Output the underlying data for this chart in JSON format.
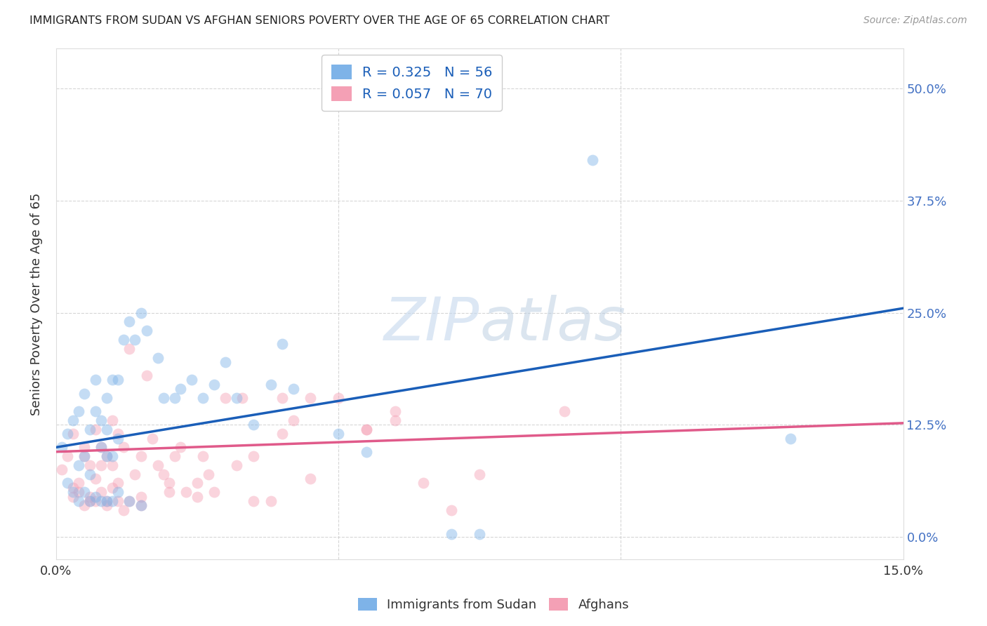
{
  "title": "IMMIGRANTS FROM SUDAN VS AFGHAN SENIORS POVERTY OVER THE AGE OF 65 CORRELATION CHART",
  "source": "Source: ZipAtlas.com",
  "ylabel": "Seniors Poverty Over the Age of 65",
  "ytick_labels": [
    "0.0%",
    "12.5%",
    "25.0%",
    "37.5%",
    "50.0%"
  ],
  "ytick_values": [
    0.0,
    0.125,
    0.25,
    0.375,
    0.5
  ],
  "xmin": 0.0,
  "xmax": 0.15,
  "ymin": -0.025,
  "ymax": 0.545,
  "sudan_color": "#7eb3e8",
  "afghan_color": "#f4a0b5",
  "sudan_line_color": "#1a5eb8",
  "afghan_line_color": "#e05a8a",
  "legend_text_color": "#1a5eb8",
  "background_color": "#ffffff",
  "grid_color": "#cccccc",
  "title_color": "#222222",
  "axis_right_label_color": "#4472c4",
  "figsize": [
    14.06,
    8.92
  ],
  "dpi": 100,
  "marker_size": 130,
  "marker_alpha": 0.45,
  "line_width": 2.5,
  "sudan_x": [
    0.001,
    0.002,
    0.003,
    0.004,
    0.004,
    0.005,
    0.005,
    0.006,
    0.006,
    0.007,
    0.007,
    0.008,
    0.008,
    0.009,
    0.009,
    0.009,
    0.01,
    0.01,
    0.011,
    0.011,
    0.012,
    0.013,
    0.014,
    0.015,
    0.016,
    0.018,
    0.019,
    0.021,
    0.022,
    0.024,
    0.026,
    0.028,
    0.03,
    0.032,
    0.035,
    0.038,
    0.04,
    0.042,
    0.05,
    0.055,
    0.002,
    0.003,
    0.004,
    0.005,
    0.006,
    0.007,
    0.008,
    0.009,
    0.01,
    0.011,
    0.013,
    0.015,
    0.07,
    0.075,
    0.095,
    0.13
  ],
  "sudan_y": [
    0.1,
    0.115,
    0.13,
    0.08,
    0.14,
    0.09,
    0.16,
    0.12,
    0.07,
    0.14,
    0.175,
    0.1,
    0.13,
    0.09,
    0.12,
    0.155,
    0.09,
    0.175,
    0.11,
    0.175,
    0.22,
    0.24,
    0.22,
    0.25,
    0.23,
    0.2,
    0.155,
    0.155,
    0.165,
    0.175,
    0.155,
    0.17,
    0.195,
    0.155,
    0.125,
    0.17,
    0.215,
    0.165,
    0.115,
    0.095,
    0.06,
    0.05,
    0.04,
    0.05,
    0.04,
    0.045,
    0.04,
    0.04,
    0.04,
    0.05,
    0.04,
    0.035,
    0.003,
    0.003,
    0.42,
    0.11
  ],
  "afghan_x": [
    0.001,
    0.002,
    0.003,
    0.003,
    0.004,
    0.005,
    0.005,
    0.006,
    0.006,
    0.007,
    0.007,
    0.008,
    0.008,
    0.009,
    0.009,
    0.01,
    0.01,
    0.011,
    0.011,
    0.012,
    0.012,
    0.013,
    0.014,
    0.015,
    0.016,
    0.017,
    0.018,
    0.019,
    0.02,
    0.021,
    0.022,
    0.023,
    0.025,
    0.026,
    0.027,
    0.028,
    0.03,
    0.032,
    0.033,
    0.035,
    0.038,
    0.04,
    0.042,
    0.045,
    0.05,
    0.055,
    0.06,
    0.065,
    0.07,
    0.075,
    0.003,
    0.005,
    0.007,
    0.009,
    0.011,
    0.013,
    0.015,
    0.04,
    0.06,
    0.09,
    0.004,
    0.006,
    0.008,
    0.01,
    0.015,
    0.02,
    0.025,
    0.035,
    0.045,
    0.055
  ],
  "afghan_y": [
    0.075,
    0.09,
    0.055,
    0.115,
    0.05,
    0.09,
    0.1,
    0.08,
    0.04,
    0.12,
    0.065,
    0.1,
    0.08,
    0.04,
    0.09,
    0.13,
    0.08,
    0.06,
    0.115,
    0.1,
    0.03,
    0.21,
    0.07,
    0.09,
    0.18,
    0.11,
    0.08,
    0.07,
    0.06,
    0.09,
    0.1,
    0.05,
    0.06,
    0.09,
    0.07,
    0.05,
    0.155,
    0.08,
    0.155,
    0.09,
    0.04,
    0.155,
    0.13,
    0.155,
    0.155,
    0.12,
    0.13,
    0.06,
    0.03,
    0.07,
    0.045,
    0.035,
    0.04,
    0.035,
    0.04,
    0.04,
    0.045,
    0.115,
    0.14,
    0.14,
    0.06,
    0.045,
    0.05,
    0.055,
    0.035,
    0.05,
    0.045,
    0.04,
    0.065,
    0.12
  ],
  "sudan_line_x": [
    0.0,
    0.15
  ],
  "sudan_line_y": [
    0.1,
    0.255
  ],
  "afghan_line_x": [
    0.0,
    0.15
  ],
  "afghan_line_y": [
    0.095,
    0.127
  ]
}
